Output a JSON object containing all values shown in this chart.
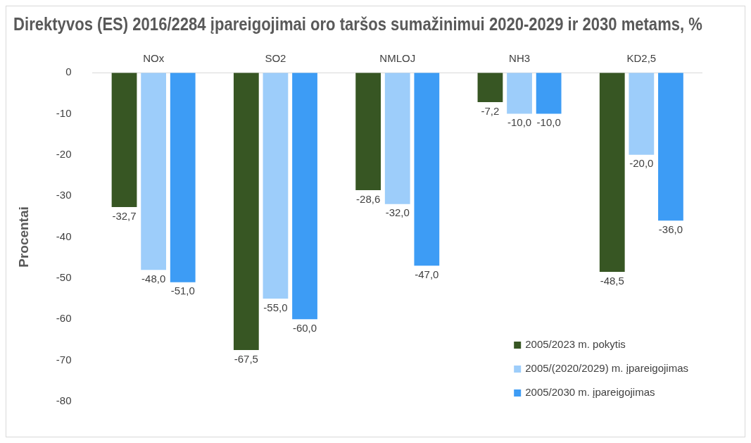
{
  "chart_data": {
    "type": "bar",
    "title": "Direktyvos (ES) 2016/2284 įpareigojimai oro taršos sumažinimui 2020-2029 ir 2030 metams, %",
    "ylabel": "Procentai",
    "categories": [
      "NOx",
      "SO2",
      "NMLOJ",
      "NH3",
      "KD2,5"
    ],
    "series": [
      {
        "name": "2005/2023 m. pokytis",
        "color": "#375623",
        "values": [
          -32.7,
          -67.5,
          -28.6,
          -7.2,
          -48.5
        ],
        "value_labels": [
          "-32,7",
          "-67,5",
          "-28,6",
          "-7,2",
          "-48,5"
        ]
      },
      {
        "name": "2005/(2020/2029) m. įpareigojimas",
        "color": "#9dcdfa",
        "values": [
          -48.0,
          -55.0,
          -32.0,
          -10.0,
          -20.0
        ],
        "value_labels": [
          "-48,0",
          "-55,0",
          "-32,0",
          "-10,0",
          "-20,0"
        ]
      },
      {
        "name": "2005/2030 m. įpareigojimas",
        "color": "#3d9cf5",
        "values": [
          -51.0,
          -60.0,
          -47.0,
          -10.0,
          -36.0
        ],
        "value_labels": [
          "-51,0",
          "-60,0",
          "-47,0",
          "-10,0",
          "-36,0"
        ]
      }
    ],
    "ylim": [
      -80,
      0
    ],
    "yticks": [
      -80,
      -70,
      -60,
      -50,
      -40,
      -30,
      -20,
      -10,
      0
    ],
    "grid": false,
    "legend": "bottom right"
  }
}
